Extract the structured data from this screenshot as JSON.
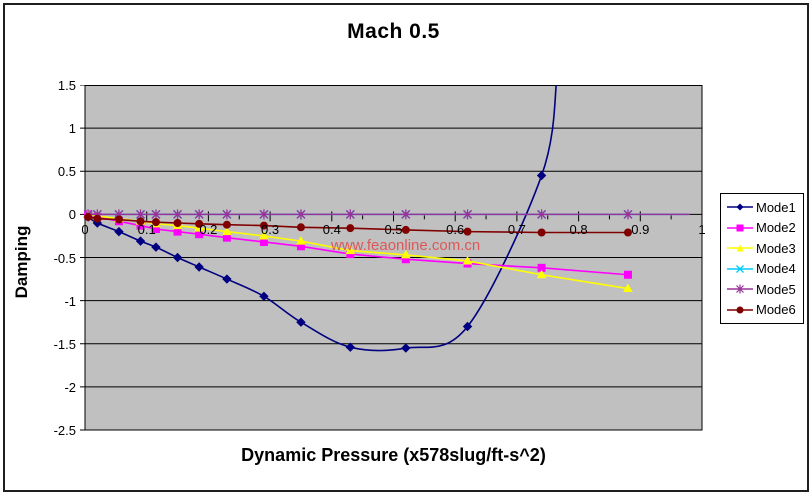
{
  "title": "Mach 0.5",
  "watermark": "www.feaonline.com.cn",
  "colors": {
    "plot_background": "#c0c0c0",
    "gridline": "#000000",
    "chart_background": "#ffffff",
    "watermark": "#e04a4a",
    "border": "#1f1f1f"
  },
  "chart_data": {
    "type": "line",
    "title": "Mach 0.5",
    "xlabel": "Dynamic Pressure (x578slug/ft-s^2)",
    "ylabel": "Damping",
    "xlim": [
      0,
      1
    ],
    "ylim": [
      -2.5,
      1.5
    ],
    "x_ticks": [
      "0",
      "0.1",
      "0.2",
      "0.3",
      "0.4",
      "0.5",
      "0.6",
      "0.7",
      "0.8",
      "0.9",
      "1"
    ],
    "y_ticks": [
      "1.5",
      "1",
      "0.5",
      "0",
      "-0.5",
      "-1",
      "-1.5",
      "-2",
      "-2.5"
    ],
    "grid": "horizontal-only",
    "legend_position": "right",
    "series": [
      {
        "name": "Mode1",
        "color": "#000080",
        "marker": "diamond",
        "smooth": true,
        "x": [
          0.005,
          0.02,
          0.055,
          0.09,
          0.115,
          0.15,
          0.185,
          0.23,
          0.29,
          0.35,
          0.43,
          0.52,
          0.62,
          0.74
        ],
        "y": [
          -0.03,
          -0.1,
          -0.2,
          -0.31,
          -0.38,
          -0.5,
          -0.61,
          -0.75,
          -0.95,
          -1.25,
          -1.54,
          -1.55,
          -1.3,
          0.45
        ],
        "line_extra": [
          [
            0.765,
            1.6
          ]
        ],
        "note": "curve rises steeply and exits top of plot near x=0.76"
      },
      {
        "name": "Mode2",
        "color": "#ff00ff",
        "marker": "square",
        "smooth": false,
        "x": [
          0.005,
          0.02,
          0.055,
          0.09,
          0.115,
          0.15,
          0.185,
          0.23,
          0.29,
          0.35,
          0.43,
          0.52,
          0.62,
          0.74,
          0.88
        ],
        "y": [
          0,
          -0.03,
          -0.08,
          -0.13,
          -0.17,
          -0.2,
          -0.23,
          -0.27,
          -0.32,
          -0.37,
          -0.46,
          -0.52,
          -0.57,
          -0.62,
          -0.7
        ],
        "line_extra": []
      },
      {
        "name": "Mode3",
        "color": "#ffff00",
        "marker": "triangle",
        "smooth": false,
        "x": [
          0.005,
          0.02,
          0.055,
          0.09,
          0.115,
          0.15,
          0.185,
          0.23,
          0.29,
          0.35,
          0.43,
          0.52,
          0.62,
          0.74,
          0.88
        ],
        "y": [
          0,
          -0.02,
          -0.05,
          -0.08,
          -0.11,
          -0.13,
          -0.16,
          -0.2,
          -0.25,
          -0.31,
          -0.42,
          -0.47,
          -0.54,
          -0.7,
          -0.86
        ],
        "line_extra": []
      },
      {
        "name": "Mode4",
        "color": "#00ccff",
        "marker": "x",
        "smooth": false,
        "x": [
          0.005,
          0.02,
          0.055,
          0.09,
          0.115,
          0.15,
          0.185,
          0.23,
          0.29,
          0.35,
          0.43,
          0.52,
          0.62,
          0.74,
          0.88
        ],
        "y": [
          0,
          0,
          0,
          0,
          0,
          0,
          0,
          0,
          0,
          0,
          0,
          0,
          0,
          0,
          0
        ],
        "line_extra": [
          [
            0.98,
            0
          ]
        ]
      },
      {
        "name": "Mode5",
        "color": "#993399",
        "marker": "star",
        "smooth": false,
        "x": [
          0.005,
          0.02,
          0.055,
          0.09,
          0.115,
          0.15,
          0.185,
          0.23,
          0.29,
          0.35,
          0.43,
          0.52,
          0.62,
          0.74,
          0.88
        ],
        "y": [
          0,
          0,
          0,
          0,
          0,
          0,
          0,
          0,
          0,
          0,
          0,
          0,
          0,
          0,
          0
        ],
        "line_extra": [
          [
            0.98,
            0
          ]
        ]
      },
      {
        "name": "Mode6",
        "color": "#800000",
        "marker": "circle",
        "smooth": false,
        "x": [
          0.005,
          0.02,
          0.055,
          0.09,
          0.115,
          0.15,
          0.185,
          0.23,
          0.29,
          0.35,
          0.43,
          0.52,
          0.62,
          0.74,
          0.88
        ],
        "y": [
          -0.03,
          -0.05,
          -0.06,
          -0.08,
          -0.09,
          -0.1,
          -0.11,
          -0.12,
          -0.13,
          -0.15,
          -0.16,
          -0.18,
          -0.2,
          -0.21,
          -0.21
        ],
        "line_extra": []
      }
    ]
  }
}
